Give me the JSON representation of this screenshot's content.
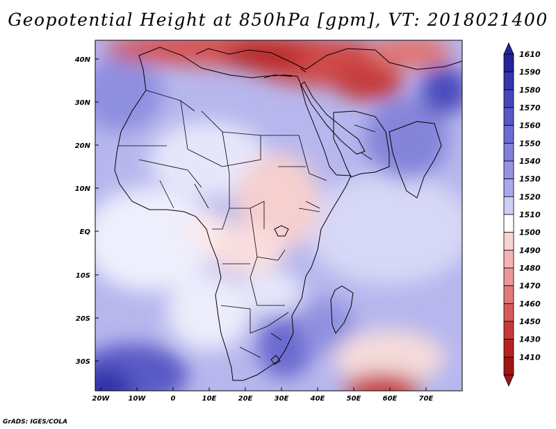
{
  "title": "Geopotential Height at 850hPa [gpm], VT: 2018021400",
  "credit": "GrADS: IGES/COLA",
  "map": {
    "x_axis": [
      "20W",
      "10W",
      "0",
      "10E",
      "20E",
      "30E",
      "40E",
      "50E",
      "60E",
      "70E"
    ],
    "y_axis": [
      "40N",
      "30N",
      "20N",
      "10N",
      "EQ",
      "10S",
      "20S",
      "30S"
    ]
  },
  "colorbar": {
    "labels": [
      "1610",
      "1590",
      "1580",
      "1570",
      "1560",
      "1550",
      "1540",
      "1530",
      "1520",
      "1510",
      "1500",
      "1490",
      "1480",
      "1470",
      "1460",
      "1450",
      "1430",
      "1410"
    ],
    "colors": [
      "#23239a",
      "#3434ab",
      "#4545bc",
      "#5858c8",
      "#6c6cd2",
      "#8080da",
      "#9494e2",
      "#a9a9eb",
      "#cfcff5",
      "#ffffff",
      "#f8d3d3",
      "#f2b4b4",
      "#eb9898",
      "#e27a7a",
      "#d65a5a",
      "#c83a3a",
      "#b52222",
      "#a11414"
    ]
  }
}
